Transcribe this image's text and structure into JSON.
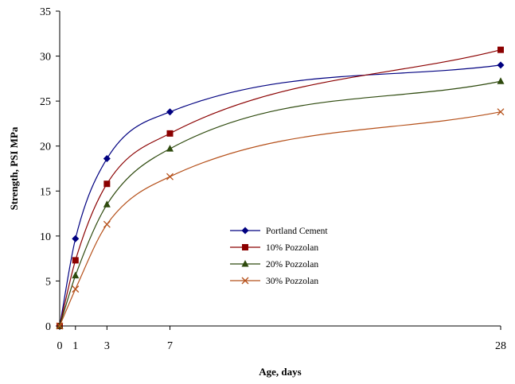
{
  "chart_data": {
    "type": "line",
    "title": "",
    "xlabel": "Age, days",
    "ylabel": "Strength, PSI MPa",
    "xlim": [
      0,
      28
    ],
    "ylim": [
      0,
      35
    ],
    "x_ticks": [
      0,
      1,
      3,
      7,
      28
    ],
    "y_ticks": [
      0,
      5,
      10,
      15,
      20,
      25,
      30,
      35
    ],
    "grid": false,
    "legend_position": "center-right",
    "x": [
      0,
      1,
      3,
      7,
      28
    ],
    "series": [
      {
        "name": "Portland Cement",
        "values": [
          0,
          9.7,
          18.6,
          23.8,
          29.0
        ],
        "color": "#000080",
        "marker": "diamond"
      },
      {
        "name": "10% Pozzolan",
        "values": [
          0,
          7.3,
          15.8,
          21.4,
          30.7
        ],
        "color": "#8B0000",
        "marker": "square"
      },
      {
        "name": "20% Pozzolan",
        "values": [
          0,
          5.6,
          13.5,
          19.7,
          27.2
        ],
        "color": "#2E4A0E",
        "marker": "triangle"
      },
      {
        "name": "30% Pozzolan",
        "values": [
          0,
          4.1,
          11.3,
          16.6,
          23.8
        ],
        "color": "#B5501A",
        "marker": "x"
      }
    ]
  }
}
